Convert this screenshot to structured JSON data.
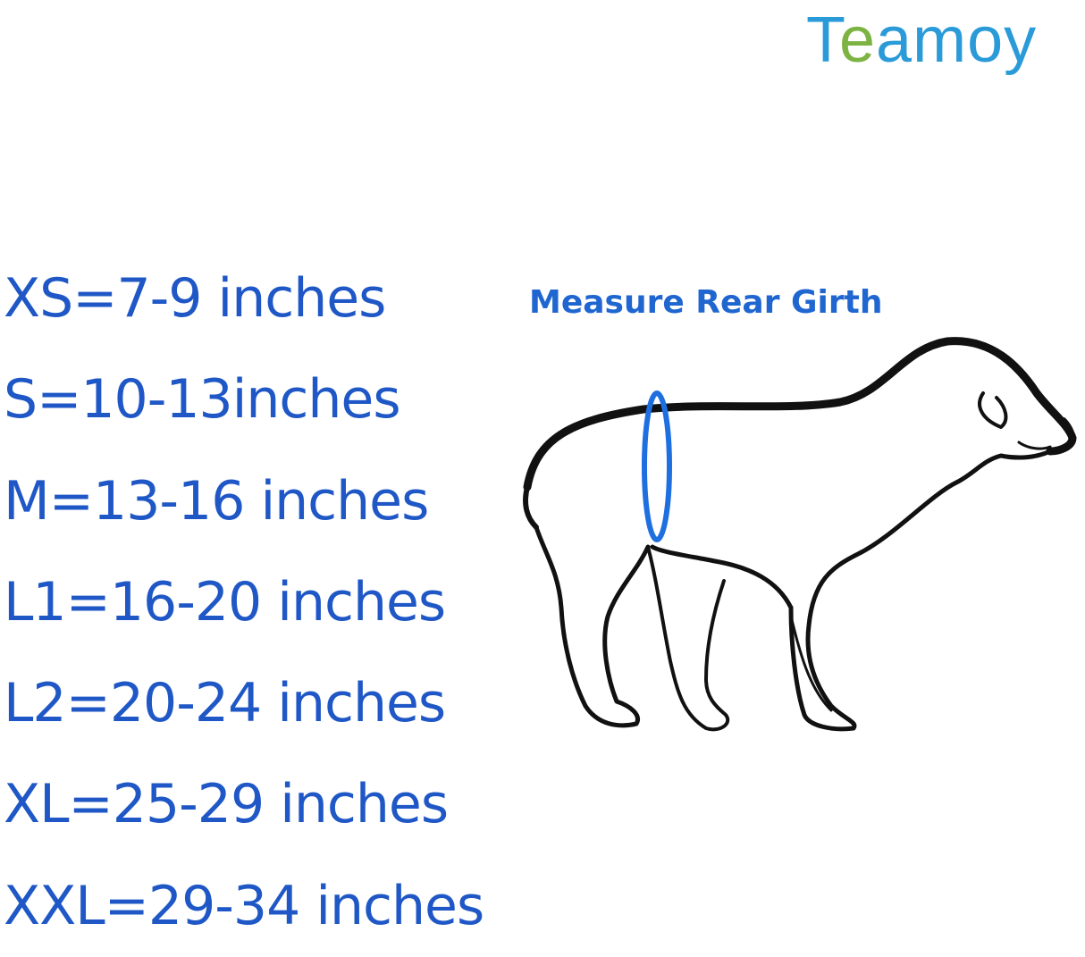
{
  "brand": {
    "logo_text": "Teamoy",
    "colors": {
      "blue": "#2a9bd8",
      "green": "#7cb342"
    }
  },
  "sizes": [
    {
      "label": "XS=7-9 inches"
    },
    {
      "label": "S=10-13inches"
    },
    {
      "label": "M=13-16 inches"
    },
    {
      "label": "L1=16-20 inches"
    },
    {
      "label": "L2=20-24 inches"
    },
    {
      "label": "XL=25-29 inches"
    },
    {
      "label": "XXL=29-34 inches"
    }
  ],
  "diagram": {
    "title": "Measure Rear Girth",
    "text_color": "#2066d0",
    "girth_ring_color": "#1e6fe0"
  }
}
